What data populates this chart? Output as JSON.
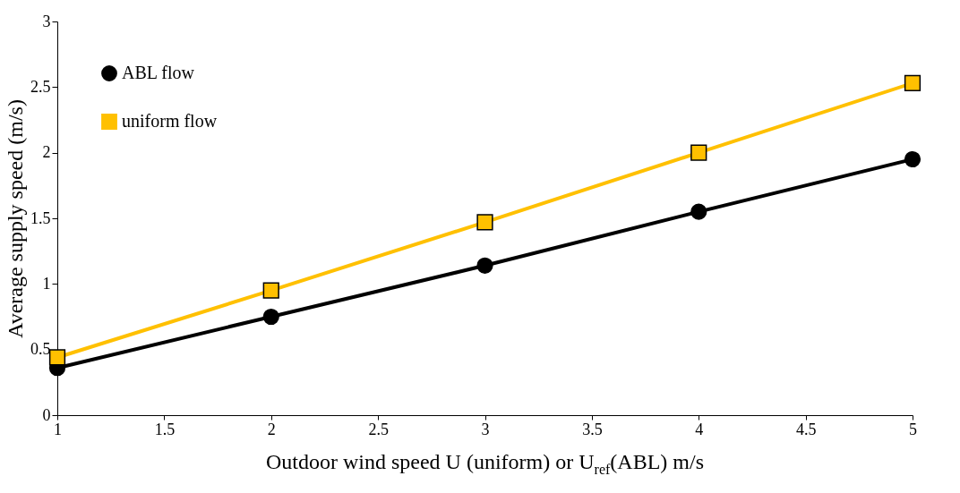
{
  "chart_data": {
    "type": "line",
    "xlabel": "Outdoor wind speed U (uniform) or U$_{ref}$(ABL) m/s",
    "ylabel": "Average supply speed (m/s)",
    "x": [
      1,
      2,
      3,
      4,
      5
    ],
    "series": [
      {
        "name": "ABL flow",
        "color": "#000000",
        "marker": "circle",
        "values": [
          0.36,
          0.75,
          1.14,
          1.55,
          1.95
        ]
      },
      {
        "name": "uniform flow",
        "color": "#ffc000",
        "marker": "square",
        "values": [
          0.44,
          0.95,
          1.47,
          2.0,
          2.53
        ]
      }
    ],
    "xlim": [
      1,
      5
    ],
    "xticks": [
      1,
      1.5,
      2,
      2.5,
      3,
      3.5,
      4,
      4.5,
      5
    ],
    "ylim": [
      0,
      3
    ],
    "yticks": [
      0,
      0.5,
      1,
      1.5,
      2,
      2.5,
      3
    ],
    "grid": false,
    "legend": "top left",
    "line_style": "solid"
  }
}
